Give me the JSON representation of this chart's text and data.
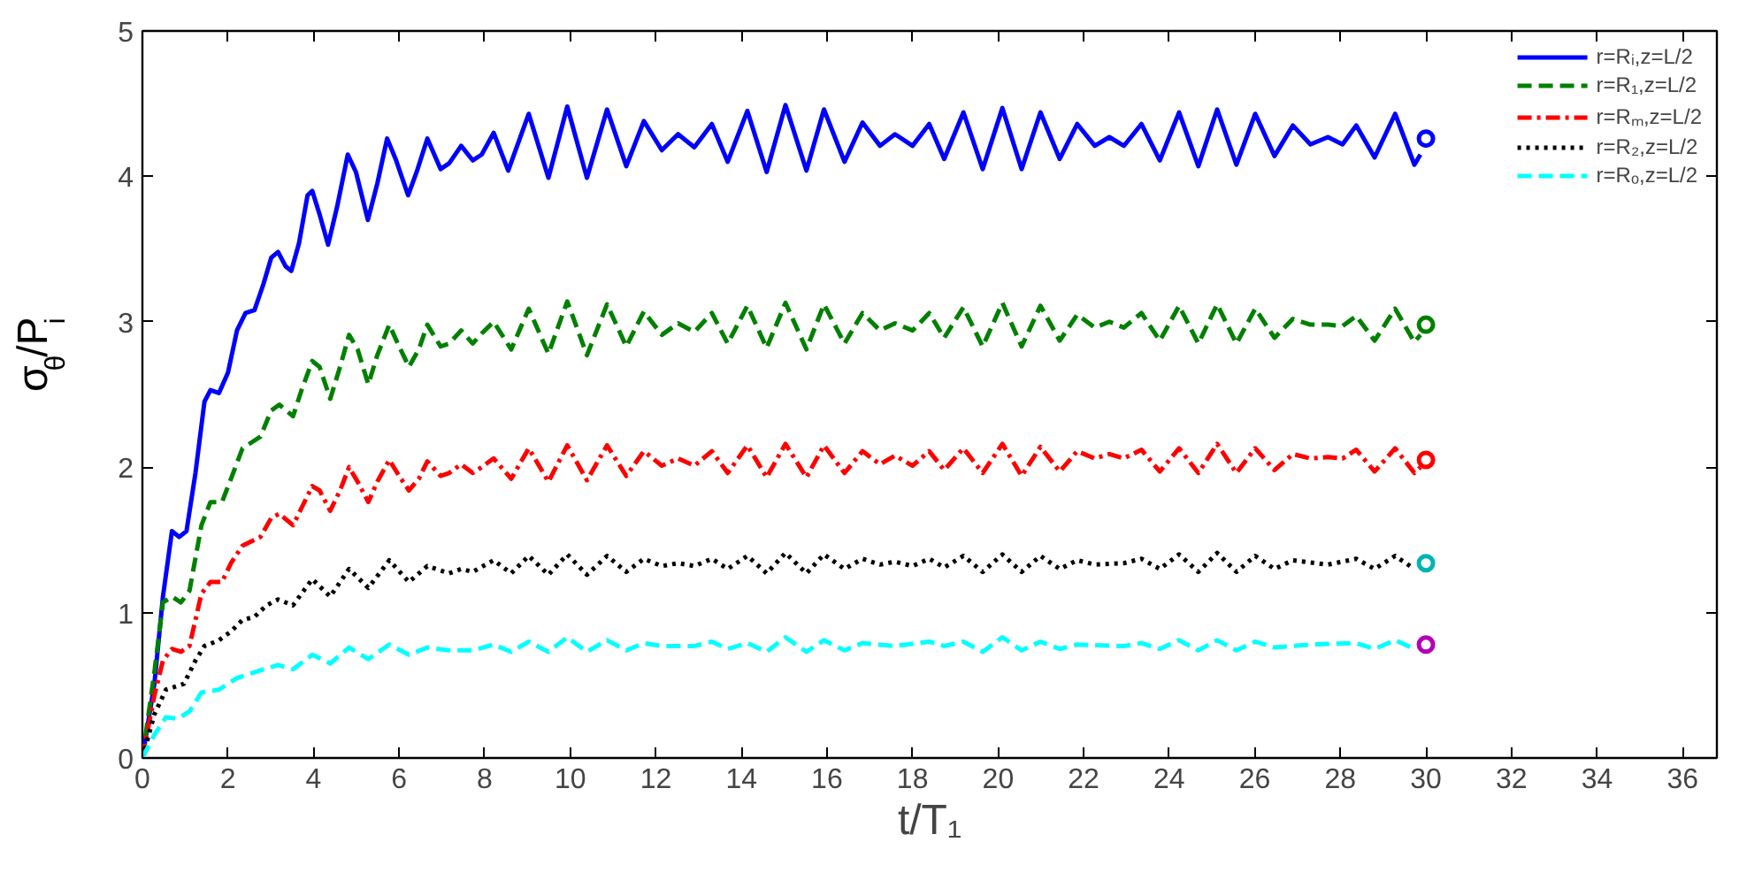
{
  "chart_data": {
    "type": "line",
    "xlabel": "t/T₁",
    "ylabel": "σ$_{θ}$/P$_{i}$",
    "xlim": [
      0,
      36.8
    ],
    "ylim": [
      0,
      5
    ],
    "xticks": [
      0,
      2,
      4,
      6,
      8,
      10,
      12,
      14,
      16,
      18,
      20,
      22,
      24,
      26,
      28,
      30,
      32,
      34,
      36
    ],
    "yticks": [
      0,
      1,
      2,
      3,
      4,
      5
    ],
    "grid": false,
    "legend": "top right",
    "marker": "none",
    "series": [
      {
        "name": "r=Rᵢ,z=L/2",
        "color": "#0000ff",
        "line_style": "solid",
        "x": [
          0,
          0.28,
          0.48,
          0.69,
          0.86,
          1.03,
          1.24,
          1.45,
          1.59,
          1.79,
          2.0,
          2.21,
          2.41,
          2.62,
          2.83,
          3.01,
          3.17,
          3.35,
          3.48,
          3.66,
          3.86,
          3.97,
          4.14,
          4.34,
          4.55,
          4.8,
          4.99,
          5.27,
          5.49,
          5.72,
          5.93,
          6.21,
          6.41,
          6.66,
          6.97,
          7.17,
          7.45,
          7.72,
          7.93,
          8.21,
          8.55,
          9.03,
          9.49,
          9.93,
          10.39,
          10.86,
          11.31,
          11.72,
          12.14,
          12.52,
          12.9,
          13.31,
          13.68,
          14.14,
          14.59,
          15.03,
          15.52,
          15.93,
          16.41,
          16.83,
          17.24,
          17.59,
          18.0,
          18.39,
          18.74,
          19.19,
          19.64,
          20.1,
          20.55,
          20.99,
          21.44,
          21.85,
          22.26,
          22.6,
          22.94,
          23.35,
          23.78,
          24.23,
          24.68,
          25.12,
          25.57,
          26.01,
          26.46,
          26.89,
          27.3,
          27.71,
          28.05,
          28.37,
          28.8,
          29.28,
          29.73,
          29.87
        ],
        "values": [
          0,
          0.51,
          1.11,
          1.56,
          1.52,
          1.56,
          1.96,
          2.45,
          2.53,
          2.51,
          2.65,
          2.94,
          3.06,
          3.08,
          3.26,
          3.44,
          3.48,
          3.38,
          3.35,
          3.54,
          3.87,
          3.9,
          3.74,
          3.53,
          3.79,
          4.15,
          4.03,
          3.7,
          3.95,
          4.26,
          4.11,
          3.87,
          4.03,
          4.26,
          4.05,
          4.09,
          4.21,
          4.11,
          4.15,
          4.3,
          4.04,
          4.43,
          3.99,
          4.48,
          3.99,
          4.46,
          4.07,
          4.38,
          4.18,
          4.29,
          4.2,
          4.36,
          4.1,
          4.45,
          4.03,
          4.49,
          4.04,
          4.46,
          4.1,
          4.37,
          4.21,
          4.29,
          4.21,
          4.36,
          4.12,
          4.44,
          4.05,
          4.47,
          4.05,
          4.44,
          4.12,
          4.36,
          4.21,
          4.27,
          4.21,
          4.36,
          4.11,
          4.44,
          4.07,
          4.46,
          4.08,
          4.43,
          4.14,
          4.35,
          4.22,
          4.27,
          4.22,
          4.35,
          4.13,
          4.43,
          4.08,
          4.15
        ]
      },
      {
        "name": "r=R₁,z=L/2",
        "color": "#008000",
        "line_style": "dashed",
        "x": [
          0,
          0.28,
          0.48,
          0.69,
          0.9,
          1.1,
          1.38,
          1.59,
          1.86,
          2.07,
          2.34,
          2.55,
          2.76,
          3.01,
          3.2,
          3.52,
          3.72,
          3.97,
          4.14,
          4.39,
          4.62,
          4.83,
          5.03,
          5.28,
          5.49,
          5.77,
          6.0,
          6.23,
          6.46,
          6.66,
          6.97,
          7.17,
          7.45,
          7.72,
          7.93,
          8.21,
          8.62,
          9.03,
          9.49,
          9.93,
          10.39,
          10.86,
          11.31,
          11.72,
          12.14,
          12.52,
          12.9,
          13.31,
          13.68,
          14.14,
          14.59,
          15.03,
          15.52,
          15.93,
          16.41,
          16.83,
          17.24,
          17.59,
          18.0,
          18.39,
          18.74,
          19.19,
          19.64,
          20.1,
          20.55,
          20.99,
          21.44,
          21.85,
          22.26,
          22.6,
          22.94,
          23.35,
          23.78,
          24.23,
          24.68,
          25.12,
          25.57,
          26.01,
          26.46,
          26.89,
          27.3,
          27.71,
          28.05,
          28.37,
          28.8,
          29.28,
          29.73,
          29.87
        ],
        "values": [
          0,
          0.59,
          1.07,
          1.11,
          1.07,
          1.15,
          1.6,
          1.76,
          1.76,
          1.92,
          2.13,
          2.17,
          2.21,
          2.39,
          2.43,
          2.35,
          2.53,
          2.73,
          2.69,
          2.47,
          2.69,
          2.91,
          2.81,
          2.57,
          2.77,
          2.98,
          2.83,
          2.69,
          2.81,
          2.98,
          2.83,
          2.85,
          2.94,
          2.85,
          2.92,
          3.0,
          2.81,
          3.09,
          2.78,
          3.14,
          2.77,
          3.12,
          2.83,
          3.07,
          2.91,
          2.99,
          2.93,
          3.06,
          2.85,
          3.11,
          2.82,
          3.13,
          2.81,
          3.12,
          2.85,
          3.06,
          2.94,
          2.99,
          2.94,
          3.06,
          2.89,
          3.1,
          2.83,
          3.13,
          2.83,
          3.11,
          2.87,
          3.05,
          2.96,
          3.0,
          2.96,
          3.06,
          2.87,
          3.11,
          2.85,
          3.12,
          2.85,
          3.09,
          2.89,
          3.02,
          2.98,
          2.98,
          2.97,
          3.04,
          2.87,
          3.09,
          2.86,
          2.91
        ]
      },
      {
        "name": "r=Rₘ,z=L/2",
        "color": "#ff0000",
        "line_style": "dashdot",
        "x": [
          0,
          0.28,
          0.48,
          0.69,
          0.9,
          1.1,
          1.38,
          1.59,
          1.86,
          2.07,
          2.34,
          2.55,
          2.76,
          3.01,
          3.2,
          3.52,
          3.72,
          3.97,
          4.14,
          4.39,
          4.62,
          4.83,
          5.03,
          5.28,
          5.49,
          5.77,
          6.0,
          6.23,
          6.46,
          6.66,
          6.97,
          7.17,
          7.45,
          7.72,
          7.93,
          8.21,
          8.62,
          9.03,
          9.49,
          9.93,
          10.39,
          10.86,
          11.31,
          11.72,
          12.14,
          12.52,
          12.9,
          13.31,
          13.68,
          14.14,
          14.59,
          15.03,
          15.52,
          15.93,
          16.41,
          16.83,
          17.24,
          17.59,
          18.0,
          18.39,
          18.74,
          19.19,
          19.64,
          20.1,
          20.55,
          20.99,
          21.44,
          21.85,
          22.26,
          22.6,
          22.94,
          23.35,
          23.78,
          24.23,
          24.68,
          25.12,
          25.57,
          26.01,
          26.46,
          26.89,
          27.3,
          27.71,
          28.05,
          28.37,
          28.8,
          29.28,
          29.73,
          29.87
        ],
        "values": [
          0,
          0.43,
          0.67,
          0.75,
          0.73,
          0.77,
          1.13,
          1.21,
          1.21,
          1.34,
          1.46,
          1.49,
          1.52,
          1.65,
          1.68,
          1.6,
          1.72,
          1.87,
          1.84,
          1.7,
          1.84,
          2.0,
          1.9,
          1.76,
          1.9,
          2.05,
          1.94,
          1.84,
          1.92,
          2.04,
          1.94,
          1.96,
          2.02,
          1.96,
          2.0,
          2.06,
          1.92,
          2.13,
          1.9,
          2.15,
          1.91,
          2.15,
          1.94,
          2.11,
          2.01,
          2.06,
          2.01,
          2.11,
          1.96,
          2.15,
          1.93,
          2.16,
          1.93,
          2.15,
          1.96,
          2.11,
          2.02,
          2.08,
          2.01,
          2.11,
          1.98,
          2.13,
          1.96,
          2.16,
          1.94,
          2.14,
          1.97,
          2.11,
          2.06,
          2.09,
          2.06,
          2.12,
          1.97,
          2.13,
          1.96,
          2.16,
          1.96,
          2.13,
          1.98,
          2.09,
          2.06,
          2.07,
          2.06,
          2.12,
          1.97,
          2.13,
          1.96,
          2.0
        ]
      },
      {
        "name": "r=R₂,z=L/2",
        "color": "#000000",
        "line_style": "dotted",
        "x": [
          0,
          0.28,
          0.55,
          0.76,
          0.97,
          1.24,
          1.45,
          1.79,
          2.07,
          2.34,
          2.62,
          2.9,
          3.17,
          3.52,
          3.97,
          4.39,
          4.83,
          5.28,
          5.77,
          6.23,
          6.66,
          7.17,
          7.45,
          7.72,
          8.21,
          8.62,
          9.03,
          9.49,
          9.93,
          10.39,
          10.86,
          11.31,
          11.72,
          12.14,
          12.52,
          12.9,
          13.31,
          13.68,
          14.14,
          14.59,
          15.03,
          15.52,
          15.93,
          16.41,
          16.83,
          17.24,
          17.59,
          18.0,
          18.39,
          18.74,
          19.19,
          19.64,
          20.1,
          20.55,
          20.99,
          21.44,
          21.85,
          22.26,
          22.94,
          23.35,
          23.78,
          24.23,
          24.68,
          25.12,
          25.57,
          26.01,
          26.46,
          26.89,
          27.71,
          28.37,
          28.8,
          29.28,
          29.73
        ],
        "values": [
          0,
          0.3,
          0.47,
          0.49,
          0.51,
          0.67,
          0.77,
          0.81,
          0.87,
          0.95,
          0.97,
          1.05,
          1.09,
          1.05,
          1.23,
          1.11,
          1.3,
          1.17,
          1.36,
          1.21,
          1.32,
          1.27,
          1.3,
          1.28,
          1.36,
          1.27,
          1.39,
          1.26,
          1.4,
          1.26,
          1.39,
          1.28,
          1.37,
          1.32,
          1.34,
          1.32,
          1.37,
          1.3,
          1.39,
          1.27,
          1.41,
          1.27,
          1.4,
          1.3,
          1.37,
          1.33,
          1.35,
          1.32,
          1.37,
          1.31,
          1.39,
          1.28,
          1.4,
          1.28,
          1.39,
          1.3,
          1.36,
          1.33,
          1.34,
          1.37,
          1.3,
          1.4,
          1.28,
          1.41,
          1.28,
          1.39,
          1.3,
          1.36,
          1.33,
          1.37,
          1.3,
          1.39,
          1.3
        ]
      },
      {
        "name": "r=Rₒ,z=L/2",
        "color": "#00ffff",
        "line_style": "dashed",
        "x": [
          0,
          0.28,
          0.55,
          0.83,
          1.1,
          1.38,
          1.79,
          2.21,
          2.62,
          3.17,
          3.52,
          3.97,
          4.39,
          4.83,
          5.28,
          5.77,
          6.23,
          6.66,
          7.17,
          7.72,
          8.21,
          8.62,
          9.03,
          9.49,
          9.93,
          10.39,
          10.86,
          11.31,
          11.72,
          12.14,
          12.9,
          13.31,
          13.68,
          14.14,
          14.59,
          15.03,
          15.52,
          15.93,
          16.41,
          16.83,
          17.59,
          18.39,
          18.74,
          19.19,
          19.64,
          20.1,
          20.55,
          20.99,
          21.44,
          21.85,
          22.94,
          23.35,
          23.78,
          24.23,
          24.68,
          25.12,
          25.57,
          26.01,
          26.46,
          27.3,
          28.37,
          28.8,
          29.28,
          29.73
        ],
        "values": [
          0,
          0.16,
          0.28,
          0.27,
          0.32,
          0.45,
          0.47,
          0.55,
          0.59,
          0.64,
          0.61,
          0.71,
          0.65,
          0.76,
          0.68,
          0.78,
          0.71,
          0.76,
          0.74,
          0.74,
          0.78,
          0.73,
          0.8,
          0.73,
          0.83,
          0.73,
          0.81,
          0.74,
          0.79,
          0.77,
          0.77,
          0.8,
          0.75,
          0.79,
          0.73,
          0.83,
          0.73,
          0.81,
          0.74,
          0.79,
          0.77,
          0.8,
          0.77,
          0.8,
          0.73,
          0.83,
          0.74,
          0.8,
          0.75,
          0.78,
          0.77,
          0.79,
          0.75,
          0.81,
          0.74,
          0.81,
          0.74,
          0.8,
          0.76,
          0.78,
          0.79,
          0.75,
          0.81,
          0.75
        ]
      },
      {
        "type": "scatter",
        "marker": "circle",
        "x": [
          30,
          30,
          30,
          30,
          30
        ],
        "values": [
          4.26,
          2.98,
          2.05,
          1.34,
          0.78
        ],
        "colors": [
          "#0000ff",
          "#008000",
          "#ff0000",
          "#00b4b4",
          "#b400b4"
        ]
      }
    ]
  }
}
